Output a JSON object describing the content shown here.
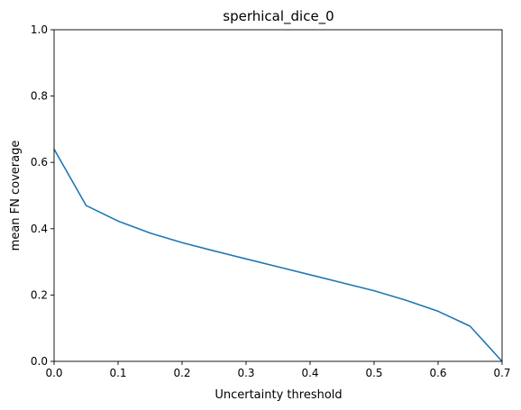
{
  "chart_data": {
    "type": "line",
    "title": "sperhical_dice_0",
    "xlabel": "Uncertainty threshold",
    "ylabel": "mean FN coverage",
    "xlim": [
      0,
      0.7
    ],
    "ylim": [
      0,
      1
    ],
    "xticks": [
      "0.0",
      "0.1",
      "0.2",
      "0.3",
      "0.4",
      "0.5",
      "0.6",
      "0.7"
    ],
    "yticks": [
      "0.0",
      "0.2",
      "0.4",
      "0.6",
      "0.8",
      "1.0"
    ],
    "grid": false,
    "series": [
      {
        "color": "#1f77b4",
        "x": [
          0.0,
          0.05,
          0.1,
          0.15,
          0.2,
          0.25,
          0.3,
          0.35,
          0.4,
          0.45,
          0.5,
          0.55,
          0.6,
          0.65,
          0.7
        ],
        "y": [
          0.64,
          0.47,
          0.423,
          0.387,
          0.358,
          0.333,
          0.309,
          0.285,
          0.261,
          0.237,
          0.213,
          0.184,
          0.151,
          0.106,
          0.0
        ]
      }
    ]
  }
}
